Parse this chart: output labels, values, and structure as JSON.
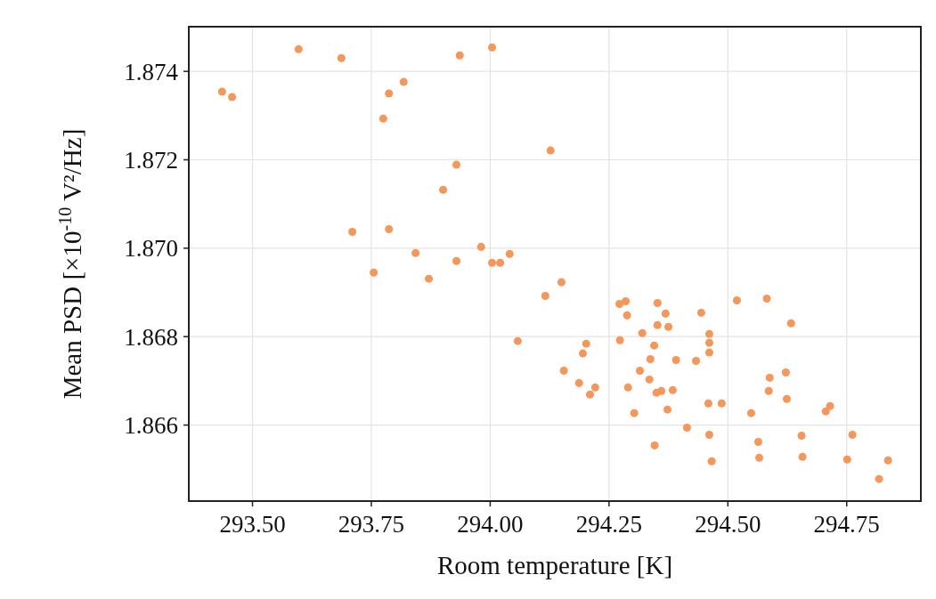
{
  "chart_data": {
    "type": "scatter",
    "xlabel": "Room temperature [K]",
    "ylabel": "Mean PSD [×10$^{-10}$ V²/Hz]",
    "xlim": [
      293.366,
      294.906
    ],
    "ylim": [
      1.86428,
      1.87501
    ],
    "xticks": [
      {
        "value": 293.5,
        "label": "293.50"
      },
      {
        "value": 293.75,
        "label": "293.75"
      },
      {
        "value": 294,
        "label": "294.00"
      },
      {
        "value": 294.25,
        "label": "294.25"
      },
      {
        "value": 294.5,
        "label": "294.50"
      },
      {
        "value": 294.75,
        "label": "294.75"
      }
    ],
    "yticks": [
      1.866,
      1.868,
      {
        "value": 1.87,
        "label": "1.870"
      },
      1.872,
      1.874
    ],
    "grid": true,
    "marker": "circle",
    "series": [
      {
        "color": "#f4975a",
        "x": [
          293.436,
          293.457,
          293.597,
          293.687,
          293.936,
          294.004,
          293.787,
          293.818,
          293.775,
          294.127,
          293.929,
          293.901,
          293.71,
          293.787,
          293.843,
          293.981,
          293.755,
          293.871,
          293.929,
          294.004,
          294.021,
          294.041,
          294.116,
          294.15,
          294.058,
          294.272,
          294.285,
          294.288,
          294.352,
          294.369,
          294.352,
          294.375,
          294.32,
          294.444,
          294.519,
          294.582,
          294.633,
          294.461,
          294.461,
          294.461,
          294.273,
          294.202,
          294.195,
          294.345,
          294.337,
          294.391,
          294.433,
          294.155,
          294.315,
          294.335,
          294.187,
          294.221,
          294.21,
          294.29,
          294.35,
          294.36,
          294.384,
          294.588,
          294.622,
          294.586,
          294.624,
          294.459,
          294.487,
          294.549,
          294.303,
          294.373,
          294.706,
          294.715,
          294.414,
          294.461,
          294.655,
          294.762,
          294.564,
          294.346,
          294.566,
          294.657,
          294.751,
          294.837,
          294.466,
          294.818
        ],
        "values": [
          1.87354,
          1.87342,
          1.8745,
          1.8743,
          1.87436,
          1.87454,
          1.8735,
          1.87376,
          1.87293,
          1.87221,
          1.87189,
          1.87132,
          1.87037,
          1.87043,
          1.86989,
          1.87003,
          1.86945,
          1.86931,
          1.86971,
          1.86967,
          1.86967,
          1.86987,
          1.86892,
          1.86923,
          1.8679,
          1.86874,
          1.8688,
          1.86848,
          1.86876,
          1.86852,
          1.86826,
          1.86822,
          1.86808,
          1.86854,
          1.86882,
          1.86886,
          1.8683,
          1.86806,
          1.86786,
          1.86764,
          1.86792,
          1.86784,
          1.86762,
          1.8678,
          1.86749,
          1.86747,
          1.86745,
          1.86723,
          1.86723,
          1.86703,
          1.86695,
          1.86685,
          1.86669,
          1.86685,
          1.86673,
          1.86677,
          1.86679,
          1.86707,
          1.86719,
          1.86677,
          1.86659,
          1.86649,
          1.86649,
          1.86627,
          1.86627,
          1.86635,
          1.86631,
          1.86643,
          1.86594,
          1.86578,
          1.86576,
          1.86578,
          1.86562,
          1.86554,
          1.86526,
          1.86528,
          1.86522,
          1.8652,
          1.86518,
          1.86478
        ]
      }
    ]
  }
}
